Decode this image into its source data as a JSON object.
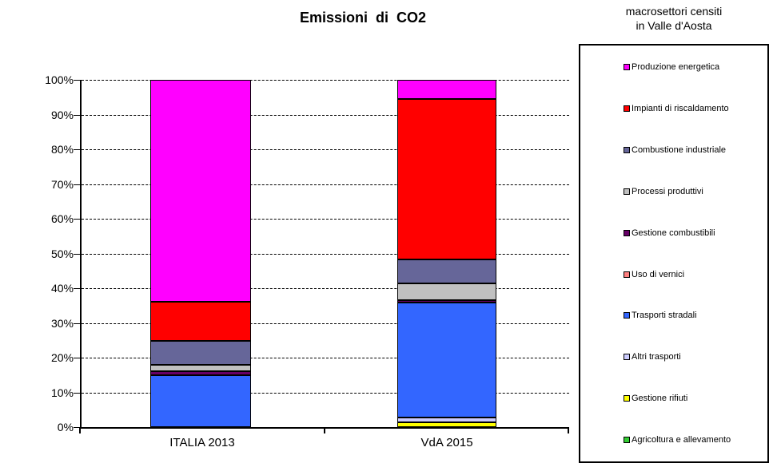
{
  "title": "Emissioni di CO2",
  "legend": {
    "title_line1": "macrosettori censiti",
    "title_line2": "in Valle d'Aosta",
    "items": [
      {
        "label": "Produzione energetica",
        "color": "#FF00FF"
      },
      {
        "label": "Impianti di riscaldamento",
        "color": "#FF0000"
      },
      {
        "label": "Combustione industriale",
        "color": "#666699"
      },
      {
        "label": "Processi produttivi",
        "color": "#C0C0C0"
      },
      {
        "label": "Gestione combustibili",
        "color": "#660066"
      },
      {
        "label": "Uso di vernici",
        "color": "#FF8080"
      },
      {
        "label": "Trasporti stradali",
        "color": "#3366FF"
      },
      {
        "label": "Altri trasporti",
        "color": "#CCCCFF"
      },
      {
        "label": "Gestione rifiuti",
        "color": "#FFFF00"
      },
      {
        "label": "Agricoltura e allevamento",
        "color": "#33CC33"
      }
    ]
  },
  "chart_data": {
    "type": "bar",
    "stacked": true,
    "unit": "percent of total CO2 emissions",
    "title": "Emissioni di CO2",
    "categories": [
      "ITALIA 2013",
      "VdA 2015"
    ],
    "series": [
      {
        "name": "Produzione energetica",
        "color": "#FF00FF",
        "values": [
          63.8,
          5.6
        ]
      },
      {
        "name": "Impianti di riscaldamento",
        "color": "#FF0000",
        "values": [
          11.4,
          46.1
        ]
      },
      {
        "name": "Combustione industriale",
        "color": "#666699",
        "values": [
          6.9,
          6.9
        ]
      },
      {
        "name": "Processi produttivi",
        "color": "#C0C0C0",
        "values": [
          1.9,
          4.9
        ]
      },
      {
        "name": "Gestione combustibili",
        "color": "#660066",
        "values": [
          1.1,
          0.6
        ]
      },
      {
        "name": "Uso di vernici",
        "color": "#FF8080",
        "values": [
          0,
          0
        ]
      },
      {
        "name": "Trasporti stradali",
        "color": "#3366FF",
        "values": [
          14.9,
          33.1
        ]
      },
      {
        "name": "Altri trasporti",
        "color": "#CCCCFF",
        "values": [
          0,
          1.4
        ]
      },
      {
        "name": "Gestione rifiuti",
        "color": "#FFFF00",
        "values": [
          0,
          1.4
        ]
      },
      {
        "name": "Agricoltura e allevamento",
        "color": "#33CC33",
        "values": [
          0,
          0
        ]
      }
    ],
    "stack_order": "first series at top of column",
    "ylim": [
      0,
      100
    ],
    "ytick_step": 10,
    "ytick_labels": [
      "0%",
      "10%",
      "20%",
      "30%",
      "40%",
      "50%",
      "60%",
      "70%",
      "80%",
      "90%",
      "100%"
    ],
    "grid": "horizontal dashed",
    "legend_position": "right"
  }
}
